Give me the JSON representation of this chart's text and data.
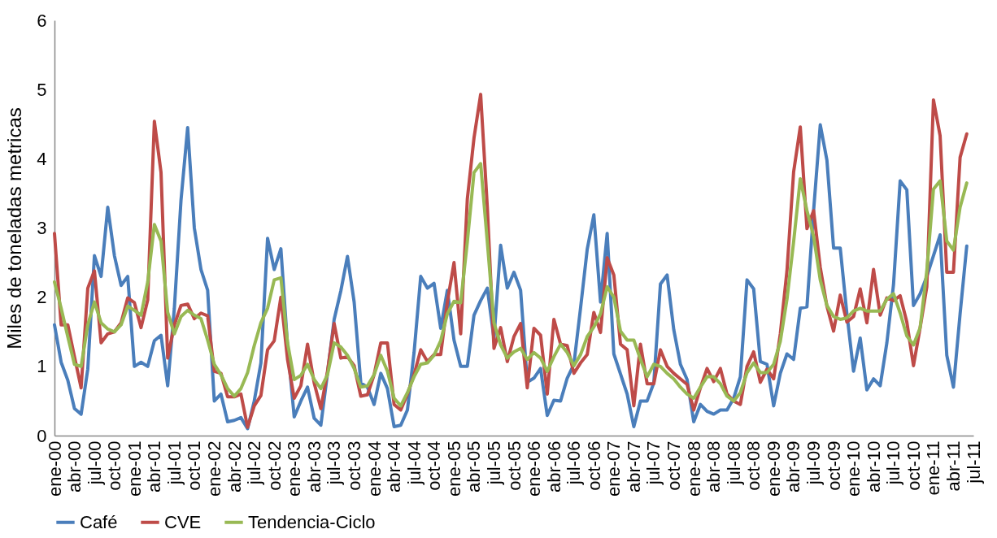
{
  "chart_data": {
    "type": "line",
    "ylabel": "Miles de toneladas metricas",
    "categories": [
      "ene-00",
      null,
      null,
      "abr-00",
      null,
      null,
      "jul-00",
      null,
      null,
      "oct-00",
      null,
      null,
      "ene-01",
      null,
      null,
      "abr-01",
      null,
      null,
      "jul-01",
      null,
      null,
      "oct-01",
      null,
      null,
      "ene-02",
      null,
      null,
      "abr-02",
      null,
      null,
      "jul-02",
      null,
      null,
      "oct-02",
      null,
      null,
      "ene-03",
      null,
      null,
      "abr-03",
      null,
      null,
      "jul-03",
      null,
      null,
      "oct-03",
      null,
      null,
      "ene-04",
      null,
      null,
      "abr-04",
      null,
      null,
      "jul-04",
      null,
      null,
      "oct-04",
      null,
      null,
      "ene-05",
      null,
      null,
      "abr-05",
      null,
      null,
      "jul-05",
      null,
      null,
      "oct-05",
      null,
      null,
      "ene-06",
      null,
      null,
      "abr-06",
      null,
      null,
      "jul-06",
      null,
      null,
      "oct-06",
      null,
      null,
      "ene-07",
      null,
      null,
      "abr-07",
      null,
      null,
      "jul-07",
      null,
      null,
      "oct-07",
      null,
      null,
      "ene-08",
      null,
      null,
      "abr-08",
      null,
      null,
      "jul-08",
      null,
      null,
      "oct-08",
      null,
      null,
      "ene-09",
      null,
      null,
      "abr-09",
      null,
      null,
      "jul-09",
      null,
      null,
      "oct-09",
      null,
      null,
      "ene-10",
      null,
      null,
      "abr-10",
      null,
      null,
      "jul-10",
      null,
      null,
      "oct-10",
      null,
      null,
      "ene-11",
      null,
      null,
      "abr-11",
      null,
      null,
      "jul-11"
    ],
    "series": [
      {
        "name": "Café",
        "color": "#4a7ebb",
        "values": [
          1.6,
          1.06,
          0.8,
          0.39,
          0.31,
          0.96,
          2.6,
          2.3,
          3.3,
          2.6,
          2.17,
          2.3,
          1.0,
          1.06,
          1.0,
          1.37,
          1.45,
          0.72,
          1.84,
          3.4,
          4.45,
          3.0,
          2.4,
          2.1,
          0.5,
          0.6,
          0.2,
          0.22,
          0.26,
          0.1,
          0.5,
          1.05,
          2.85,
          2.4,
          2.7,
          1.3,
          0.27,
          0.5,
          0.7,
          0.25,
          0.15,
          0.9,
          1.68,
          2.09,
          2.59,
          1.93,
          0.76,
          0.7,
          0.45,
          0.9,
          0.68,
          0.13,
          0.15,
          0.37,
          1.2,
          2.3,
          2.13,
          2.2,
          1.55,
          2.1,
          1.38,
          1.0,
          1.0,
          1.74,
          1.95,
          2.13,
          1.4,
          2.75,
          2.13,
          2.36,
          2.1,
          0.77,
          0.83,
          0.97,
          0.29,
          0.51,
          0.5,
          0.83,
          1.03,
          1.84,
          2.69,
          3.19,
          1.93,
          2.92,
          1.18,
          0.89,
          0.6,
          0.13,
          0.5,
          0.5,
          0.76,
          2.19,
          2.32,
          1.53,
          1.03,
          0.81,
          0.2,
          0.45,
          0.35,
          0.31,
          0.37,
          0.37,
          0.54,
          0.85,
          2.25,
          2.12,
          1.07,
          1.03,
          0.43,
          0.9,
          1.18,
          1.1,
          1.84,
          1.86,
          3.25,
          4.49,
          3.98,
          2.71,
          2.71,
          1.76,
          0.93,
          1.41,
          0.66,
          0.82,
          0.72,
          1.34,
          2.18,
          3.68,
          3.55,
          1.88,
          2.05,
          2.3,
          2.6,
          2.9,
          1.16,
          0.7,
          1.76,
          2.74,
          null
        ]
      },
      {
        "name": "CVE",
        "color": "#be4b48",
        "values": [
          2.92,
          1.6,
          1.6,
          1.14,
          0.69,
          2.13,
          2.38,
          1.34,
          1.47,
          1.5,
          1.63,
          1.99,
          1.92,
          1.56,
          1.96,
          4.54,
          3.8,
          1.12,
          1.6,
          1.88,
          1.9,
          1.69,
          1.77,
          1.73,
          0.93,
          0.9,
          0.56,
          0.56,
          0.6,
          0.12,
          0.43,
          0.58,
          1.24,
          1.37,
          2.0,
          1.1,
          0.54,
          0.72,
          1.32,
          0.76,
          0.39,
          0.93,
          1.62,
          1.12,
          1.14,
          1.01,
          0.57,
          0.59,
          0.88,
          1.34,
          1.34,
          0.45,
          0.37,
          0.6,
          0.88,
          1.24,
          1.07,
          1.17,
          1.17,
          1.93,
          2.5,
          1.47,
          3.42,
          4.3,
          4.93,
          3.3,
          1.26,
          1.56,
          1.07,
          1.43,
          1.62,
          0.69,
          1.55,
          1.45,
          0.6,
          1.68,
          1.32,
          1.3,
          0.9,
          1.05,
          1.17,
          1.78,
          1.49,
          2.57,
          2.32,
          1.32,
          1.24,
          0.43,
          1.32,
          0.75,
          0.75,
          1.24,
          1.0,
          0.9,
          0.82,
          0.74,
          0.37,
          0.69,
          0.97,
          0.78,
          0.97,
          0.6,
          0.5,
          0.45,
          1.0,
          1.21,
          0.77,
          0.96,
          0.82,
          1.47,
          2.38,
          3.81,
          4.46,
          2.99,
          3.25,
          2.43,
          1.87,
          1.51,
          2.03,
          1.64,
          1.72,
          2.12,
          1.63,
          2.4,
          1.74,
          1.99,
          1.95,
          2.02,
          1.64,
          1.01,
          1.56,
          2.15,
          4.85,
          4.33,
          2.36,
          2.36,
          4.02,
          4.36,
          null
        ]
      },
      {
        "name": "Tendencia-Ciclo",
        "color": "#98b954",
        "values": [
          2.22,
          1.84,
          1.43,
          1.03,
          1.0,
          1.6,
          1.93,
          1.63,
          1.54,
          1.5,
          1.6,
          1.87,
          1.81,
          1.74,
          2.22,
          3.05,
          2.81,
          1.78,
          1.47,
          1.72,
          1.81,
          1.74,
          1.69,
          1.38,
          1.03,
          0.88,
          0.68,
          0.57,
          0.68,
          0.91,
          1.3,
          1.63,
          1.84,
          2.25,
          2.28,
          1.34,
          0.81,
          0.87,
          1.03,
          0.81,
          0.68,
          0.88,
          1.34,
          1.28,
          1.16,
          0.97,
          0.7,
          0.72,
          0.88,
          1.16,
          0.93,
          0.54,
          0.43,
          0.62,
          0.85,
          1.03,
          1.05,
          1.16,
          1.37,
          1.76,
          1.94,
          1.92,
          2.8,
          3.8,
          3.93,
          2.8,
          1.63,
          1.31,
          1.12,
          1.21,
          1.26,
          1.1,
          1.2,
          1.12,
          0.93,
          1.14,
          1.32,
          1.2,
          1.01,
          1.17,
          1.43,
          1.57,
          1.76,
          2.15,
          2.0,
          1.51,
          1.38,
          1.38,
          1.1,
          0.85,
          1.03,
          1.0,
          0.9,
          0.82,
          0.7,
          0.6,
          0.54,
          0.7,
          0.85,
          0.85,
          0.75,
          0.57,
          0.5,
          0.62,
          0.91,
          1.05,
          0.91,
          0.91,
          1.03,
          1.36,
          1.97,
          2.8,
          3.71,
          3.25,
          2.88,
          2.25,
          1.88,
          1.72,
          1.68,
          1.7,
          1.8,
          1.84,
          1.8,
          1.8,
          1.8,
          1.97,
          2.05,
          1.77,
          1.44,
          1.31,
          1.56,
          2.38,
          3.56,
          3.68,
          2.81,
          2.68,
          3.3,
          3.65,
          null
        ]
      }
    ],
    "ylim": [
      0,
      6
    ],
    "yticks": [
      0,
      1,
      2,
      3,
      4,
      5,
      6
    ],
    "grid": false,
    "legend": "bottom",
    "marker": "none",
    "line_style": "solid"
  }
}
